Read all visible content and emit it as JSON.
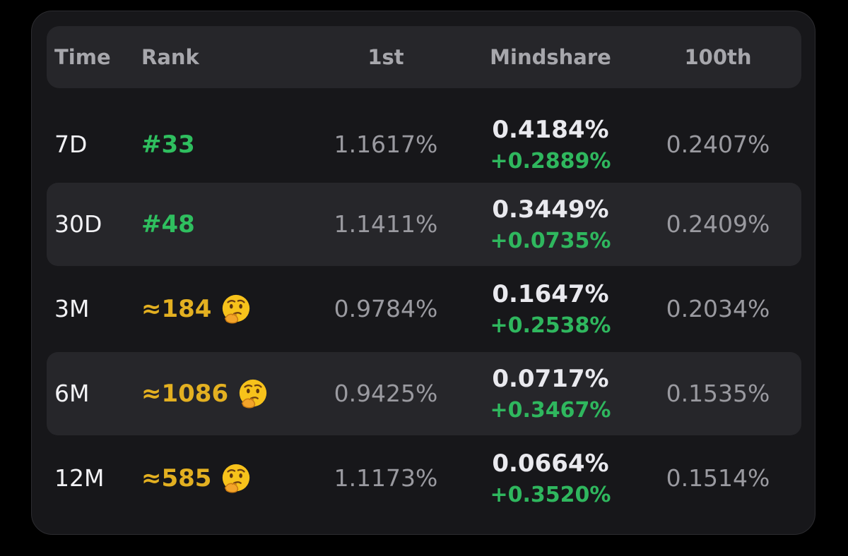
{
  "header": {
    "time": "Time",
    "rank": "Rank",
    "first": "1st",
    "mindshare": "Mindshare",
    "hundredth": "100th"
  },
  "rows": [
    {
      "time": "7D",
      "rank": "#33",
      "rank_status": "green",
      "rank_icon": "",
      "first": "1.1617%",
      "mindshare": "0.4184%",
      "delta": "+0.2889%",
      "hundredth": "0.2407%"
    },
    {
      "time": "30D",
      "rank": "#48",
      "rank_status": "green",
      "rank_icon": "",
      "first": "1.1411%",
      "mindshare": "0.3449%",
      "delta": "+0.0735%",
      "hundredth": "0.2409%"
    },
    {
      "time": "3M",
      "rank": "≈184",
      "rank_status": "yellow",
      "rank_icon": "thinking-face-icon",
      "first": "0.9784%",
      "mindshare": "0.1647%",
      "delta": "+0.2538%",
      "hundredth": "0.2034%"
    },
    {
      "time": "6M",
      "rank": "≈1086",
      "rank_status": "yellow",
      "rank_icon": "thinking-face-icon",
      "first": "0.9425%",
      "mindshare": "0.0717%",
      "delta": "+0.3467%",
      "hundredth": "0.1535%"
    },
    {
      "time": "12M",
      "rank": "≈585",
      "rank_status": "yellow",
      "rank_icon": "thinking-face-icon",
      "first": "1.1173%",
      "mindshare": "0.0664%",
      "delta": "+0.3520%",
      "hundredth": "0.1514%"
    }
  ],
  "colors": {
    "background": "#000000",
    "card": "#17171a",
    "row_alt": "#26262a",
    "rank_green": "#2fbf5f",
    "rank_yellow": "#e3b021",
    "delta_green": "#2fb75e"
  }
}
